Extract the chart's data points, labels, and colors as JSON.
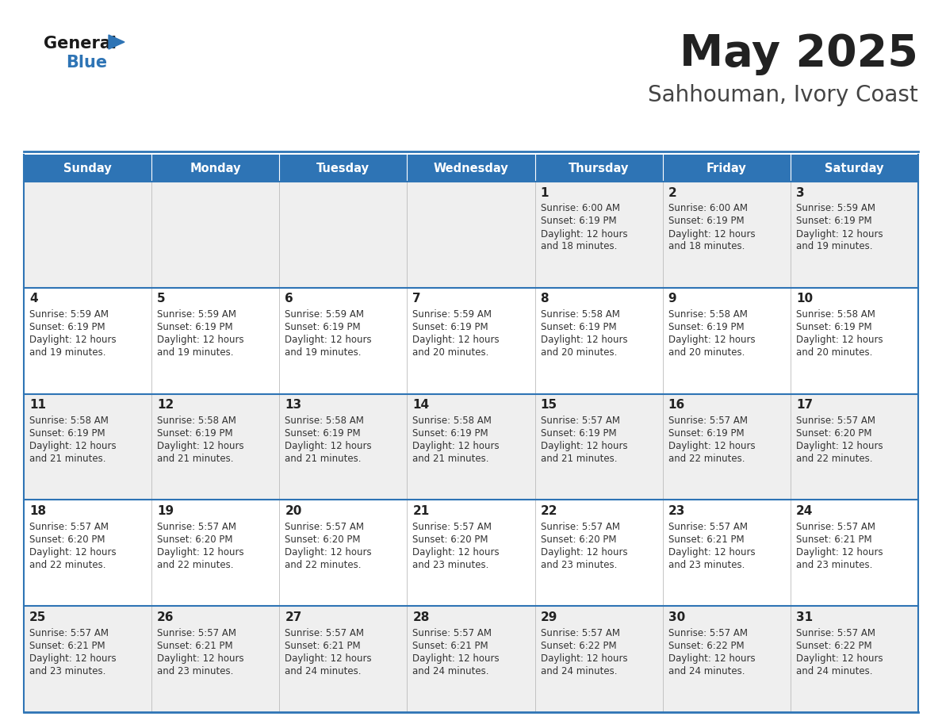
{
  "title": "May 2025",
  "subtitle": "Sahhouman, Ivory Coast",
  "days_of_week": [
    "Sunday",
    "Monday",
    "Tuesday",
    "Wednesday",
    "Thursday",
    "Friday",
    "Saturday"
  ],
  "header_bg": "#2e74b5",
  "header_text": "#ffffff",
  "row_bg_odd": "#efefef",
  "row_bg_even": "#ffffff",
  "cell_text": "#222222",
  "border_color": "#2e74b5",
  "title_color": "#222222",
  "subtitle_color": "#444444",
  "calendar_data": [
    [
      null,
      null,
      null,
      null,
      {
        "day": 1,
        "sunrise": "6:00 AM",
        "sunset": "6:19 PM",
        "daylight": "12 hours and 18 minutes."
      },
      {
        "day": 2,
        "sunrise": "6:00 AM",
        "sunset": "6:19 PM",
        "daylight": "12 hours and 18 minutes."
      },
      {
        "day": 3,
        "sunrise": "5:59 AM",
        "sunset": "6:19 PM",
        "daylight": "12 hours and 19 minutes."
      }
    ],
    [
      {
        "day": 4,
        "sunrise": "5:59 AM",
        "sunset": "6:19 PM",
        "daylight": "12 hours and 19 minutes."
      },
      {
        "day": 5,
        "sunrise": "5:59 AM",
        "sunset": "6:19 PM",
        "daylight": "12 hours and 19 minutes."
      },
      {
        "day": 6,
        "sunrise": "5:59 AM",
        "sunset": "6:19 PM",
        "daylight": "12 hours and 19 minutes."
      },
      {
        "day": 7,
        "sunrise": "5:59 AM",
        "sunset": "6:19 PM",
        "daylight": "12 hours and 20 minutes."
      },
      {
        "day": 8,
        "sunrise": "5:58 AM",
        "sunset": "6:19 PM",
        "daylight": "12 hours and 20 minutes."
      },
      {
        "day": 9,
        "sunrise": "5:58 AM",
        "sunset": "6:19 PM",
        "daylight": "12 hours and 20 minutes."
      },
      {
        "day": 10,
        "sunrise": "5:58 AM",
        "sunset": "6:19 PM",
        "daylight": "12 hours and 20 minutes."
      }
    ],
    [
      {
        "day": 11,
        "sunrise": "5:58 AM",
        "sunset": "6:19 PM",
        "daylight": "12 hours and 21 minutes."
      },
      {
        "day": 12,
        "sunrise": "5:58 AM",
        "sunset": "6:19 PM",
        "daylight": "12 hours and 21 minutes."
      },
      {
        "day": 13,
        "sunrise": "5:58 AM",
        "sunset": "6:19 PM",
        "daylight": "12 hours and 21 minutes."
      },
      {
        "day": 14,
        "sunrise": "5:58 AM",
        "sunset": "6:19 PM",
        "daylight": "12 hours and 21 minutes."
      },
      {
        "day": 15,
        "sunrise": "5:57 AM",
        "sunset": "6:19 PM",
        "daylight": "12 hours and 21 minutes."
      },
      {
        "day": 16,
        "sunrise": "5:57 AM",
        "sunset": "6:19 PM",
        "daylight": "12 hours and 22 minutes."
      },
      {
        "day": 17,
        "sunrise": "5:57 AM",
        "sunset": "6:20 PM",
        "daylight": "12 hours and 22 minutes."
      }
    ],
    [
      {
        "day": 18,
        "sunrise": "5:57 AM",
        "sunset": "6:20 PM",
        "daylight": "12 hours and 22 minutes."
      },
      {
        "day": 19,
        "sunrise": "5:57 AM",
        "sunset": "6:20 PM",
        "daylight": "12 hours and 22 minutes."
      },
      {
        "day": 20,
        "sunrise": "5:57 AM",
        "sunset": "6:20 PM",
        "daylight": "12 hours and 22 minutes."
      },
      {
        "day": 21,
        "sunrise": "5:57 AM",
        "sunset": "6:20 PM",
        "daylight": "12 hours and 23 minutes."
      },
      {
        "day": 22,
        "sunrise": "5:57 AM",
        "sunset": "6:20 PM",
        "daylight": "12 hours and 23 minutes."
      },
      {
        "day": 23,
        "sunrise": "5:57 AM",
        "sunset": "6:21 PM",
        "daylight": "12 hours and 23 minutes."
      },
      {
        "day": 24,
        "sunrise": "5:57 AM",
        "sunset": "6:21 PM",
        "daylight": "12 hours and 23 minutes."
      }
    ],
    [
      {
        "day": 25,
        "sunrise": "5:57 AM",
        "sunset": "6:21 PM",
        "daylight": "12 hours and 23 minutes."
      },
      {
        "day": 26,
        "sunrise": "5:57 AM",
        "sunset": "6:21 PM",
        "daylight": "12 hours and 23 minutes."
      },
      {
        "day": 27,
        "sunrise": "5:57 AM",
        "sunset": "6:21 PM",
        "daylight": "12 hours and 24 minutes."
      },
      {
        "day": 28,
        "sunrise": "5:57 AM",
        "sunset": "6:21 PM",
        "daylight": "12 hours and 24 minutes."
      },
      {
        "day": 29,
        "sunrise": "5:57 AM",
        "sunset": "6:22 PM",
        "daylight": "12 hours and 24 minutes."
      },
      {
        "day": 30,
        "sunrise": "5:57 AM",
        "sunset": "6:22 PM",
        "daylight": "12 hours and 24 minutes."
      },
      {
        "day": 31,
        "sunrise": "5:57 AM",
        "sunset": "6:22 PM",
        "daylight": "12 hours and 24 minutes."
      }
    ]
  ]
}
